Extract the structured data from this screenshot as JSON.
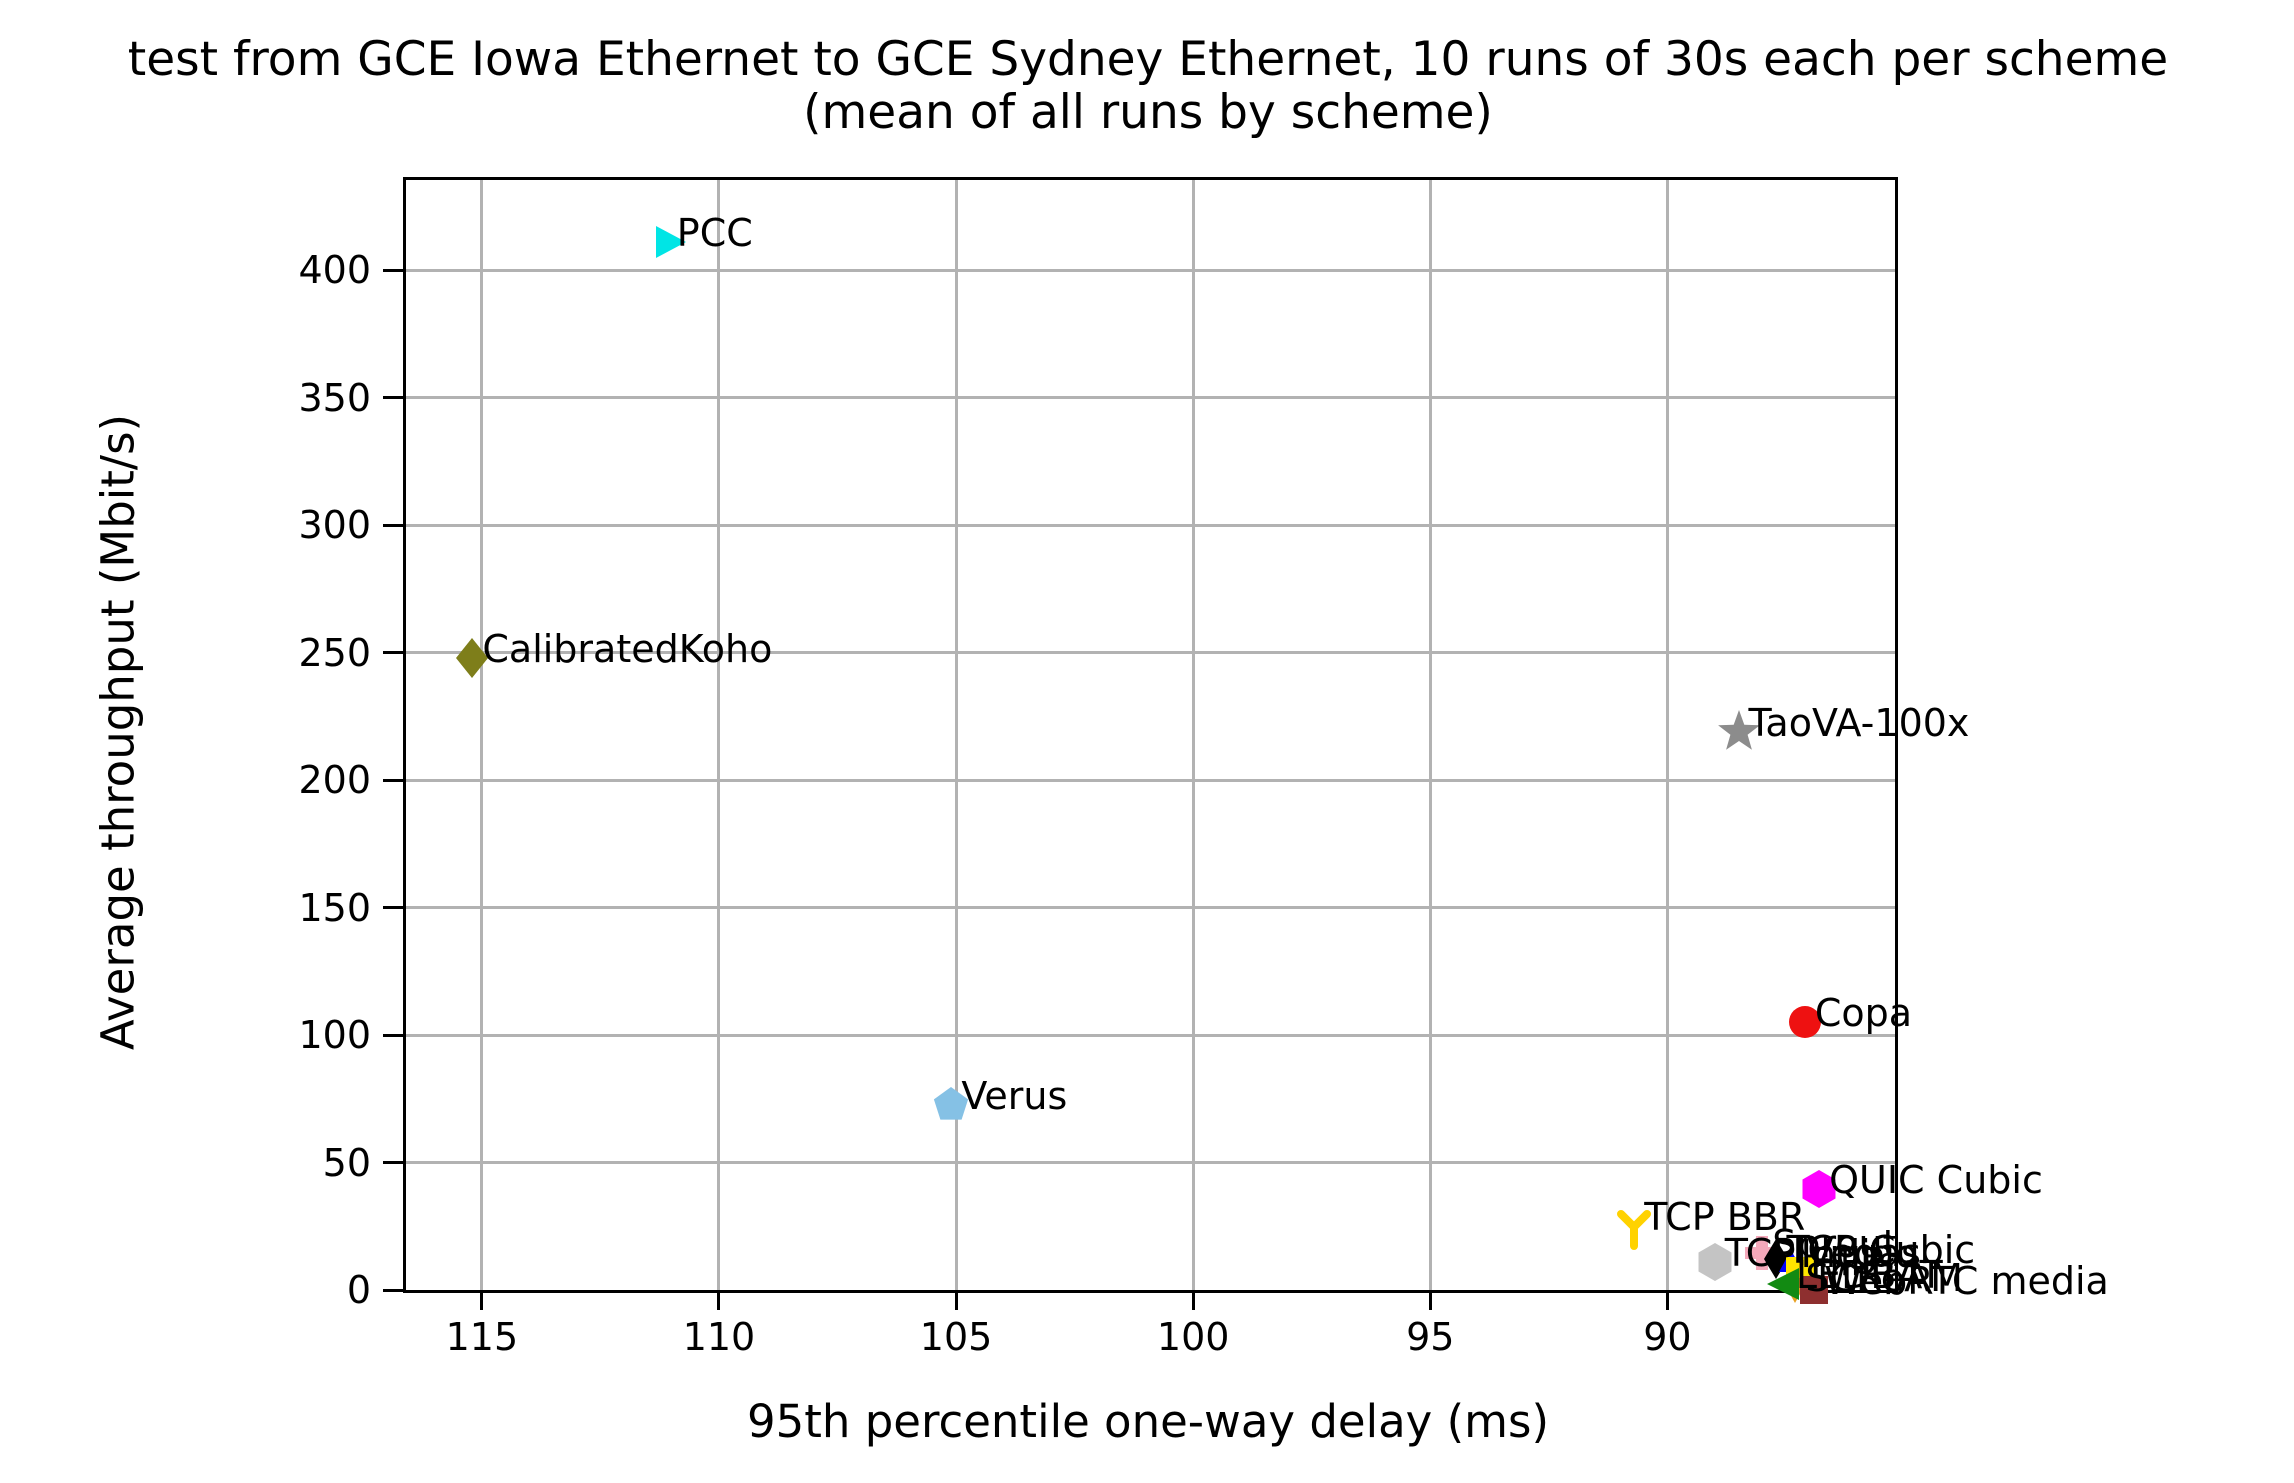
{
  "title": {
    "line1": "test from GCE Iowa Ethernet to GCE Sydney Ethernet, 10 runs of 30s each per scheme",
    "line2": "(mean of all runs by scheme)"
  },
  "chart_data": {
    "type": "scatter",
    "title": "test from GCE Iowa Ethernet to GCE Sydney Ethernet, 10 runs of 30s each per scheme (mean of all runs by scheme)",
    "xlabel": "95th percentile one-way delay (ms)",
    "ylabel": "Average throughput (Mbit/s)",
    "x_axis": {
      "ticks": [
        115,
        110,
        105,
        100,
        95,
        90
      ],
      "range": [
        116.6,
        85.2
      ],
      "inverted": true,
      "unit": "ms"
    },
    "y_axis": {
      "ticks": [
        0,
        50,
        100,
        150,
        200,
        250,
        300,
        350,
        400
      ],
      "range": [
        0,
        435.3
      ],
      "unit": "Mbit/s"
    },
    "grid": true,
    "legend_position": "none",
    "series": [
      {
        "name": "TCP Vegas",
        "x": 89.0,
        "y": 11.0,
        "color": "#c4c4c4",
        "marker": "hexagon"
      },
      {
        "name": "Sprout",
        "x": 88.0,
        "y": 14.5,
        "color": "#f4a8ba",
        "marker": "plus"
      },
      {
        "name": "TCP Cubic",
        "x": 87.7,
        "y": 12.0,
        "color": "#000000",
        "marker": "thin-diamond"
      },
      {
        "name": "Indigo",
        "x": 87.4,
        "y": 10.5,
        "color": "#0000ff",
        "marker": "triangle-up-small"
      },
      {
        "name": "FillP",
        "x": 87.2,
        "y": 7.5,
        "color": "#ffe400",
        "marker": "square"
      },
      {
        "name": "SCReAM",
        "x": 87.3,
        "y": 1.0,
        "color": "#e8a020",
        "marker": "triangle-down"
      },
      {
        "name": "LEDBAT",
        "x": 87.5,
        "y": 2.5,
        "color": "#128a12",
        "marker": "triangle-left"
      },
      {
        "name": "WebRTC media",
        "x": 86.9,
        "y": 0.0,
        "color": "#8e2f2f",
        "marker": "square"
      },
      {
        "name": "TCP BBR",
        "x": 90.7,
        "y": 25.0,
        "color": "#ffd200",
        "marker": "tri-down-y"
      },
      {
        "name": "PCC",
        "x": 111.1,
        "y": 411.0,
        "color": "#00e5e5",
        "marker": "triangle-right"
      },
      {
        "name": "CalibratedKoho",
        "x": 115.2,
        "y": 248.0,
        "color": "#7e7e1a",
        "marker": "diamond"
      },
      {
        "name": "TaoVA-100x",
        "x": 88.5,
        "y": 219.0,
        "color": "#8c8c8c",
        "marker": "star"
      },
      {
        "name": "Copa",
        "x": 87.1,
        "y": 105.0,
        "color": "#ee1111",
        "marker": "circle"
      },
      {
        "name": "Verus",
        "x": 105.1,
        "y": 72.5,
        "color": "#85c1e5",
        "marker": "pentagon"
      },
      {
        "name": "QUIC Cubic",
        "x": 86.8,
        "y": 39.5,
        "color": "#ff00ff",
        "marker": "hexagon"
      }
    ]
  },
  "style": {
    "grid_color": "#b2b2b2",
    "spine_color": "#000000",
    "background": "#ffffff",
    "annotation_color": "#000000"
  }
}
